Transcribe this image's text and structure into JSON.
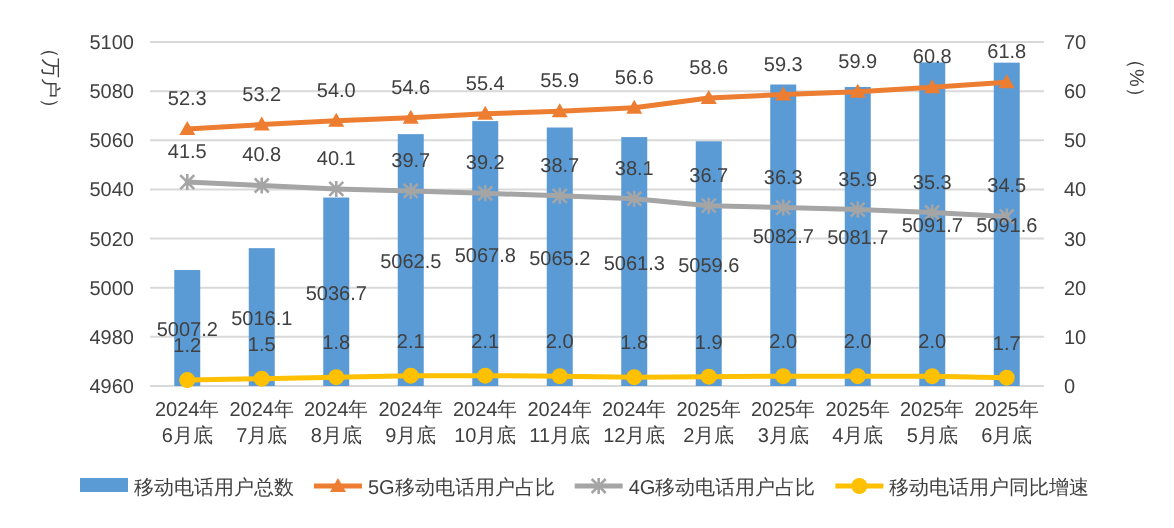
{
  "chart_data": {
    "type": "bar",
    "ylabel": "（万户）",
    "y2label": "（%）",
    "categories": [
      "2024年\n6月底",
      "2024年\n7月底",
      "2024年\n8月底",
      "2024年\n9月底",
      "2024年\n10月底",
      "2024年\n11月底",
      "2024年\n12月底",
      "2025年\n2月底",
      "2025年\n3月底",
      "2025年\n4月底",
      "2025年\n5月底",
      "2025年\n6月底"
    ],
    "ylim": [
      4960,
      5100
    ],
    "yticks": [
      4960,
      4980,
      5000,
      5020,
      5040,
      5060,
      5080,
      5100
    ],
    "y2lim": [
      0,
      70
    ],
    "y2ticks": [
      0,
      10,
      20,
      30,
      40,
      50,
      60,
      70
    ],
    "grid": "y",
    "legend": "bottom",
    "series": [
      {
        "name": "移动电话用户总数",
        "color": "#5b9bd5",
        "values": [
          5007.2,
          5016.1,
          5036.7,
          5062.5,
          5067.8,
          5065.2,
          5061.3,
          5059.6,
          5082.7,
          5081.7,
          5091.7,
          5091.6
        ],
        "value_labels": [
          "5007.2",
          "5016.1",
          "5036.7",
          "5062.5",
          "5067.8",
          "5065.2",
          "5061.3",
          "5059.6",
          "5082.7",
          "5081.7",
          "5091.7",
          "5091.6"
        ]
      },
      {
        "name": "5G移动电话用户占比",
        "type": "line",
        "axis": "y2",
        "marker": "triangle",
        "color": "#ed7d31",
        "values": [
          52.3,
          53.2,
          54.0,
          54.6,
          55.4,
          55.9,
          56.6,
          58.6,
          59.3,
          59.9,
          60.8,
          61.8
        ],
        "value_labels": [
          "52.3",
          "53.2",
          "54.0",
          "54.6",
          "55.4",
          "55.9",
          "56.6",
          "58.6",
          "59.3",
          "59.9",
          "60.8",
          "61.8"
        ]
      },
      {
        "name": "4G移动电话用户占比",
        "type": "line",
        "axis": "y2",
        "marker": "cross",
        "color": "#a5a5a5",
        "values": [
          41.5,
          40.8,
          40.1,
          39.7,
          39.2,
          38.7,
          38.1,
          36.7,
          36.3,
          35.9,
          35.3,
          34.5
        ],
        "value_labels": [
          "41.5",
          "40.8",
          "40.1",
          "39.7",
          "39.2",
          "38.7",
          "38.1",
          "36.7",
          "36.3",
          "35.9",
          "35.3",
          "34.5"
        ]
      },
      {
        "name": "移动电话用户同比增速",
        "type": "line",
        "axis": "y2",
        "marker": "circle",
        "color": "#ffc000",
        "values": [
          1.2,
          1.5,
          1.8,
          2.1,
          2.1,
          2.0,
          1.8,
          1.9,
          2.0,
          2.0,
          2.0,
          1.7
        ],
        "value_labels": [
          "1.2",
          "1.5",
          "1.8",
          "2.1",
          "2.1",
          "2.0",
          "1.8",
          "1.9",
          "2.0",
          "2.0",
          "2.0",
          "1.7"
        ]
      }
    ]
  }
}
